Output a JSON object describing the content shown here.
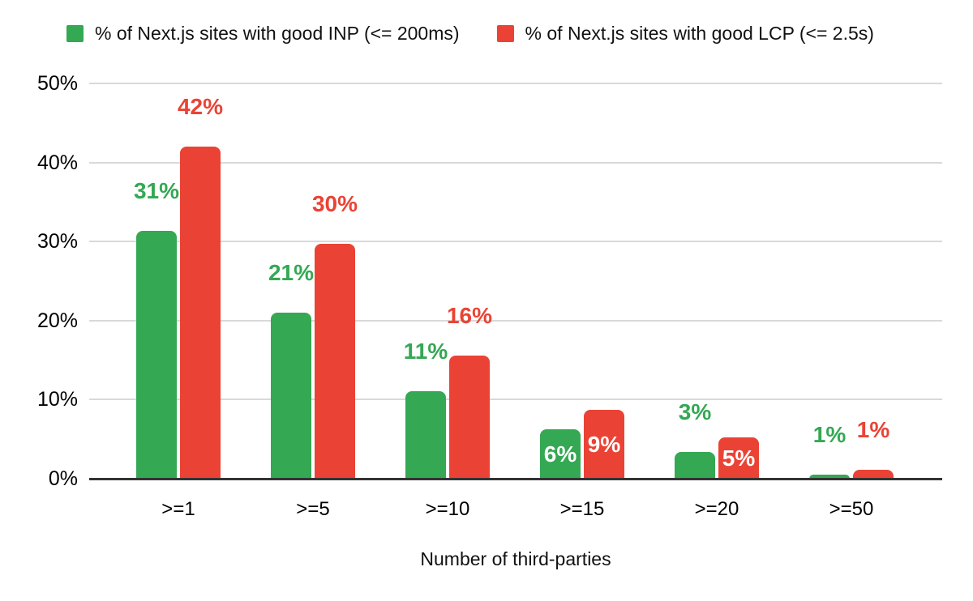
{
  "chart_data": {
    "type": "bar",
    "title": "",
    "categories": [
      ">=1",
      ">=5",
      ">=10",
      ">=15",
      ">=20",
      ">=50"
    ],
    "series": [
      {
        "id": "inp",
        "name": "% of Next.js sites with good INP (<= 200ms)",
        "color": "#34A853",
        "values": [
          31.4,
          21.0,
          11.1,
          6.3,
          3.4,
          0.5
        ],
        "data_labels": [
          "31%",
          "21%",
          "11%",
          "6%",
          "3%",
          "1%"
        ],
        "label_placement": [
          "above",
          "above",
          "above",
          "inside",
          "above",
          "above"
        ]
      },
      {
        "id": "lcp",
        "name": "% of Next.js sites with good LCP (<= 2.5s)",
        "color": "#EA4335",
        "values": [
          42.0,
          29.7,
          15.6,
          8.7,
          5.2,
          1.1
        ],
        "data_labels": [
          "42%",
          "30%",
          "16%",
          "9%",
          "5%",
          "1%"
        ],
        "label_placement": [
          "above",
          "above",
          "above",
          "inside",
          "inside",
          "above"
        ]
      }
    ],
    "xlabel": "Number of third-parties",
    "ylabel": "",
    "y_ticks": [
      "0%",
      "10%",
      "20%",
      "30%",
      "40%",
      "50%"
    ],
    "ylim": [
      0,
      50
    ],
    "grid": true,
    "legend_position": "top",
    "inside_label_color": "#ffffff",
    "gridline_color": "#d9d9d9",
    "axis_line_color": "#333333",
    "text_color": "#000000"
  }
}
